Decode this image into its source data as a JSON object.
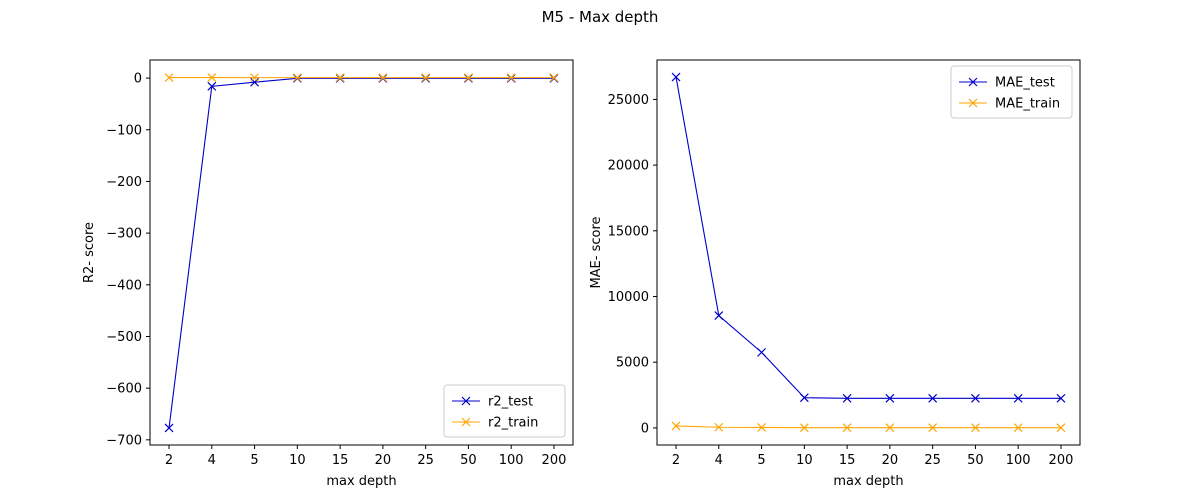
{
  "figure": {
    "title": "M5 - Max depth"
  },
  "colors": {
    "test": "#0000cd",
    "train": "#ffa500",
    "axes": "#000000"
  },
  "chart_data": [
    {
      "type": "line",
      "xlabel": "max depth",
      "ylabel": "R2- score",
      "categories": [
        "2",
        "4",
        "5",
        "10",
        "15",
        "20",
        "25",
        "50",
        "100",
        "200"
      ],
      "ylim": [
        -710,
        35
      ],
      "yticks": [
        0,
        -100,
        -200,
        -300,
        -400,
        -500,
        -600,
        -700
      ],
      "ytick_labels": [
        "0",
        "−100",
        "−200",
        "−300",
        "−400",
        "−500",
        "−600",
        "−700"
      ],
      "legend_position": "lower right",
      "series": [
        {
          "name": "r2_test",
          "color": "#0000cd",
          "marker": "x",
          "values": [
            -677,
            -16,
            -8,
            -0.5,
            -0.5,
            -0.5,
            -0.5,
            -0.5,
            -0.5,
            -0.5
          ]
        },
        {
          "name": "r2_train",
          "color": "#ffa500",
          "marker": "x",
          "values": [
            1,
            1,
            0.9,
            0.9,
            0.9,
            0.9,
            0.9,
            0.9,
            0.9,
            0.9
          ]
        }
      ]
    },
    {
      "type": "line",
      "xlabel": "max depth",
      "ylabel": "MAE- score",
      "categories": [
        "2",
        "4",
        "5",
        "10",
        "15",
        "20",
        "25",
        "50",
        "100",
        "200"
      ],
      "ylim": [
        -1300,
        28000
      ],
      "yticks": [
        0,
        5000,
        10000,
        15000,
        20000,
        25000
      ],
      "ytick_labels": [
        "0",
        "5000",
        "10000",
        "15000",
        "20000",
        "25000"
      ],
      "legend_position": "upper right",
      "series": [
        {
          "name": "MAE_test",
          "color": "#0000cd",
          "marker": "x",
          "values": [
            26700,
            8550,
            5750,
            2300,
            2250,
            2250,
            2250,
            2250,
            2250,
            2250
          ]
        },
        {
          "name": "MAE_train",
          "color": "#ffa500",
          "marker": "x",
          "values": [
            150,
            50,
            40,
            20,
            20,
            20,
            20,
            20,
            20,
            20
          ]
        }
      ]
    }
  ]
}
